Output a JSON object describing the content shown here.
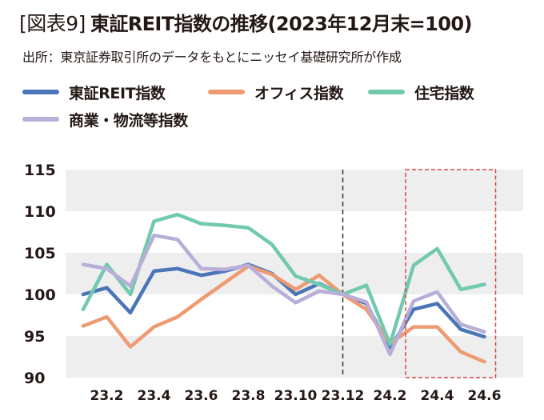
{
  "header": {
    "figure_tag": "[図表9]",
    "title": "東証REIT指数の推移(2023年12月末=100)",
    "source": "出所：東京証券取引所のデータをもとにニッセイ基礎研究所が作成"
  },
  "colors": {
    "reit": "#4A76B8",
    "office": "#EE9A72",
    "residential": "#71C9AE",
    "commercial": "#B8AED8",
    "band": "#EEEEEF",
    "highlight_box": "#D64B42",
    "divider": "#333333"
  },
  "chart_data": {
    "type": "line",
    "title": "東証REIT指数の推移(2023年12月末=100)",
    "xlabel": "",
    "ylabel": "",
    "x": [
      "23.1",
      "23.2",
      "23.3",
      "23.4",
      "23.5",
      "23.6",
      "23.7",
      "23.8",
      "23.9",
      "23.10",
      "23.11",
      "23.12",
      "24.1",
      "24.2",
      "24.3",
      "24.4",
      "24.5",
      "24.6"
    ],
    "x_tick_labels": [
      "23.2",
      "23.4",
      "23.6",
      "23.8",
      "23.10",
      "23.12",
      "24.2",
      "24.4",
      "24.6"
    ],
    "ylim": [
      90,
      115
    ],
    "y_ticks": [
      90,
      95,
      100,
      105,
      110,
      115
    ],
    "grid": "alternating horizontal bands",
    "legend": "top",
    "reference_line_x": "23.12",
    "highlight_range": [
      "24.3",
      "24.6"
    ],
    "series": [
      {
        "key": "reit",
        "name": "東証REIT指数",
        "values": [
          100.0,
          100.8,
          97.8,
          102.8,
          103.1,
          102.3,
          102.8,
          103.6,
          102.5,
          100.0,
          101.3,
          100.0,
          98.9,
          93.5,
          98.2,
          98.9,
          95.8,
          94.9
        ]
      },
      {
        "key": "office",
        "name": "オフィス指数",
        "values": [
          96.2,
          97.3,
          93.7,
          96.1,
          97.3,
          99.4,
          101.4,
          103.4,
          102.4,
          100.6,
          102.3,
          100.0,
          98.2,
          94.1,
          96.1,
          96.1,
          93.1,
          91.9
        ]
      },
      {
        "key": "residential",
        "name": "住宅指数",
        "values": [
          98.2,
          103.6,
          100.0,
          108.8,
          109.6,
          108.5,
          108.3,
          108.0,
          106.0,
          102.2,
          101.2,
          100.0,
          101.1,
          94.0,
          103.5,
          105.5,
          100.6,
          101.2
        ]
      },
      {
        "key": "commercial",
        "name": "商業・物流等指数",
        "values": [
          103.6,
          103.1,
          101.0,
          107.1,
          106.6,
          103.1,
          103.0,
          103.5,
          101.0,
          99.0,
          100.4,
          100.0,
          99.1,
          92.8,
          99.2,
          100.3,
          96.4,
          95.5
        ]
      }
    ]
  }
}
